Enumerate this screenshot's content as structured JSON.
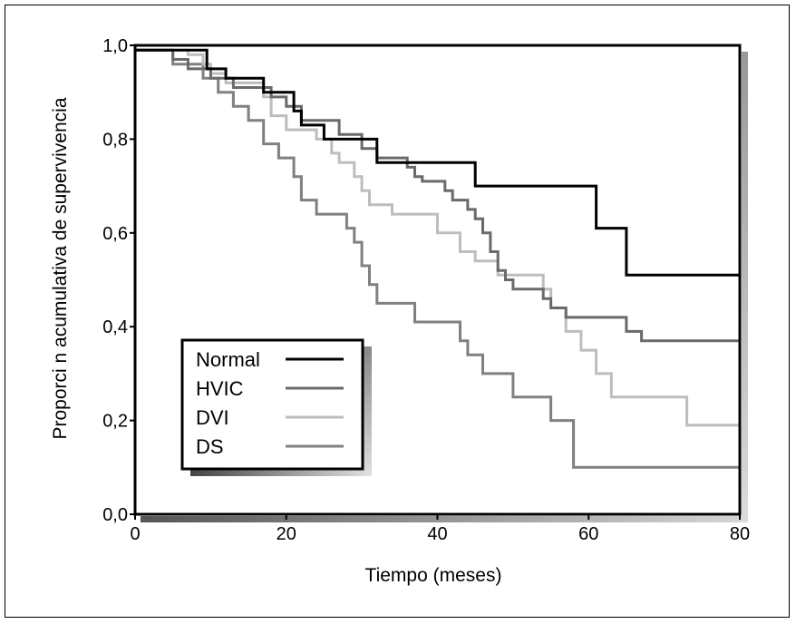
{
  "chart_data": {
    "type": "line",
    "subtype": "step (Kaplan-Meier survival)",
    "title": "",
    "xlabel": "Tiempo (meses)",
    "ylabel": "Proporci n acumulativa de supervivencia",
    "xlim": [
      0,
      80
    ],
    "ylim": [
      0,
      1.0
    ],
    "x_ticks": [
      0,
      20,
      40,
      60,
      80
    ],
    "x_tick_labels": [
      "0",
      "20",
      "40",
      "60",
      "80"
    ],
    "y_ticks": [
      0,
      0.2,
      0.4,
      0.6,
      0.8,
      1.0
    ],
    "y_tick_labels": [
      "0,0",
      "0,2",
      "0,4",
      "0,6",
      "0,8",
      "1,0"
    ],
    "grid": false,
    "legend": {
      "placement": "lower-left",
      "entries": [
        "Normal",
        "HVIC",
        "DVI",
        "DS"
      ]
    },
    "series": [
      {
        "name": "Normal",
        "color": "#000000",
        "steps": [
          [
            0,
            0.99
          ],
          [
            9.5,
            0.99
          ],
          [
            9.5,
            0.95
          ],
          [
            12,
            0.95
          ],
          [
            12,
            0.93
          ],
          [
            17,
            0.93
          ],
          [
            17,
            0.9
          ],
          [
            21,
            0.9
          ],
          [
            21,
            0.86
          ],
          [
            22,
            0.86
          ],
          [
            22,
            0.83
          ],
          [
            25,
            0.83
          ],
          [
            25,
            0.8
          ],
          [
            32,
            0.8
          ],
          [
            32,
            0.75
          ],
          [
            45,
            0.75
          ],
          [
            45,
            0.7
          ],
          [
            61,
            0.7
          ],
          [
            61,
            0.61
          ],
          [
            65,
            0.61
          ],
          [
            65,
            0.51
          ],
          [
            80,
            0.51
          ]
        ]
      },
      {
        "name": "HVIC",
        "color": "#6a6a6a",
        "steps": [
          [
            0,
            0.99
          ],
          [
            5,
            0.99
          ],
          [
            5,
            0.97
          ],
          [
            7,
            0.97
          ],
          [
            7,
            0.95
          ],
          [
            10,
            0.95
          ],
          [
            10,
            0.93
          ],
          [
            13,
            0.93
          ],
          [
            13,
            0.91
          ],
          [
            18,
            0.91
          ],
          [
            18,
            0.89
          ],
          [
            20,
            0.89
          ],
          [
            20,
            0.87
          ],
          [
            22,
            0.87
          ],
          [
            22,
            0.84
          ],
          [
            27,
            0.84
          ],
          [
            27,
            0.81
          ],
          [
            30,
            0.81
          ],
          [
            30,
            0.78
          ],
          [
            32,
            0.78
          ],
          [
            32,
            0.76
          ],
          [
            36,
            0.76
          ],
          [
            36,
            0.74
          ],
          [
            37,
            0.74
          ],
          [
            37,
            0.72
          ],
          [
            38,
            0.72
          ],
          [
            38,
            0.71
          ],
          [
            41,
            0.71
          ],
          [
            41,
            0.69
          ],
          [
            42,
            0.69
          ],
          [
            42,
            0.67
          ],
          [
            44,
            0.67
          ],
          [
            44,
            0.65
          ],
          [
            45,
            0.65
          ],
          [
            45,
            0.63
          ],
          [
            46,
            0.63
          ],
          [
            46,
            0.6
          ],
          [
            47,
            0.6
          ],
          [
            47,
            0.56
          ],
          [
            48,
            0.56
          ],
          [
            48,
            0.52
          ],
          [
            49,
            0.52
          ],
          [
            49,
            0.5
          ],
          [
            50,
            0.5
          ],
          [
            50,
            0.48
          ],
          [
            54,
            0.48
          ],
          [
            54,
            0.46
          ],
          [
            55,
            0.46
          ],
          [
            55,
            0.44
          ],
          [
            57,
            0.44
          ],
          [
            57,
            0.42
          ],
          [
            65,
            0.42
          ],
          [
            65,
            0.39
          ],
          [
            67,
            0.39
          ],
          [
            67,
            0.37
          ],
          [
            80,
            0.37
          ]
        ]
      },
      {
        "name": "DVI",
        "color": "#bdbdbd",
        "steps": [
          [
            0,
            0.99
          ],
          [
            7,
            0.99
          ],
          [
            7,
            0.98
          ],
          [
            9,
            0.98
          ],
          [
            9,
            0.96
          ],
          [
            10,
            0.96
          ],
          [
            10,
            0.94
          ],
          [
            12,
            0.94
          ],
          [
            12,
            0.92
          ],
          [
            17,
            0.92
          ],
          [
            17,
            0.89
          ],
          [
            18,
            0.89
          ],
          [
            18,
            0.85
          ],
          [
            20,
            0.85
          ],
          [
            20,
            0.82
          ],
          [
            24,
            0.82
          ],
          [
            24,
            0.8
          ],
          [
            26,
            0.8
          ],
          [
            26,
            0.77
          ],
          [
            27,
            0.77
          ],
          [
            27,
            0.75
          ],
          [
            29,
            0.75
          ],
          [
            29,
            0.72
          ],
          [
            30,
            0.72
          ],
          [
            30,
            0.69
          ],
          [
            31,
            0.69
          ],
          [
            31,
            0.66
          ],
          [
            34,
            0.66
          ],
          [
            34,
            0.64
          ],
          [
            40,
            0.64
          ],
          [
            40,
            0.6
          ],
          [
            43,
            0.6
          ],
          [
            43,
            0.56
          ],
          [
            45,
            0.56
          ],
          [
            45,
            0.54
          ],
          [
            48,
            0.54
          ],
          [
            48,
            0.51
          ],
          [
            54,
            0.51
          ],
          [
            54,
            0.48
          ],
          [
            55,
            0.48
          ],
          [
            55,
            0.44
          ],
          [
            57,
            0.44
          ],
          [
            57,
            0.39
          ],
          [
            59,
            0.39
          ],
          [
            59,
            0.35
          ],
          [
            61,
            0.35
          ],
          [
            61,
            0.3
          ],
          [
            63,
            0.3
          ],
          [
            63,
            0.25
          ],
          [
            73,
            0.25
          ],
          [
            73,
            0.19
          ],
          [
            80,
            0.19
          ]
        ]
      },
      {
        "name": "DS",
        "color": "#808080",
        "steps": [
          [
            0,
            0.99
          ],
          [
            5,
            0.99
          ],
          [
            5,
            0.96
          ],
          [
            9,
            0.96
          ],
          [
            9,
            0.93
          ],
          [
            11,
            0.93
          ],
          [
            11,
            0.9
          ],
          [
            13,
            0.9
          ],
          [
            13,
            0.87
          ],
          [
            15,
            0.87
          ],
          [
            15,
            0.84
          ],
          [
            17,
            0.84
          ],
          [
            17,
            0.79
          ],
          [
            19,
            0.79
          ],
          [
            19,
            0.76
          ],
          [
            21,
            0.76
          ],
          [
            21,
            0.72
          ],
          [
            22,
            0.72
          ],
          [
            22,
            0.67
          ],
          [
            24,
            0.67
          ],
          [
            24,
            0.64
          ],
          [
            28,
            0.64
          ],
          [
            28,
            0.61
          ],
          [
            29,
            0.61
          ],
          [
            29,
            0.58
          ],
          [
            30,
            0.58
          ],
          [
            30,
            0.53
          ],
          [
            31,
            0.53
          ],
          [
            31,
            0.49
          ],
          [
            32,
            0.49
          ],
          [
            32,
            0.45
          ],
          [
            37,
            0.45
          ],
          [
            37,
            0.41
          ],
          [
            43,
            0.41
          ],
          [
            43,
            0.37
          ],
          [
            44,
            0.37
          ],
          [
            44,
            0.34
          ],
          [
            46,
            0.34
          ],
          [
            46,
            0.3
          ],
          [
            50,
            0.3
          ],
          [
            50,
            0.25
          ],
          [
            55,
            0.25
          ],
          [
            55,
            0.2
          ],
          [
            58,
            0.2
          ],
          [
            58,
            0.1
          ],
          [
            80,
            0.1
          ]
        ]
      }
    ]
  }
}
